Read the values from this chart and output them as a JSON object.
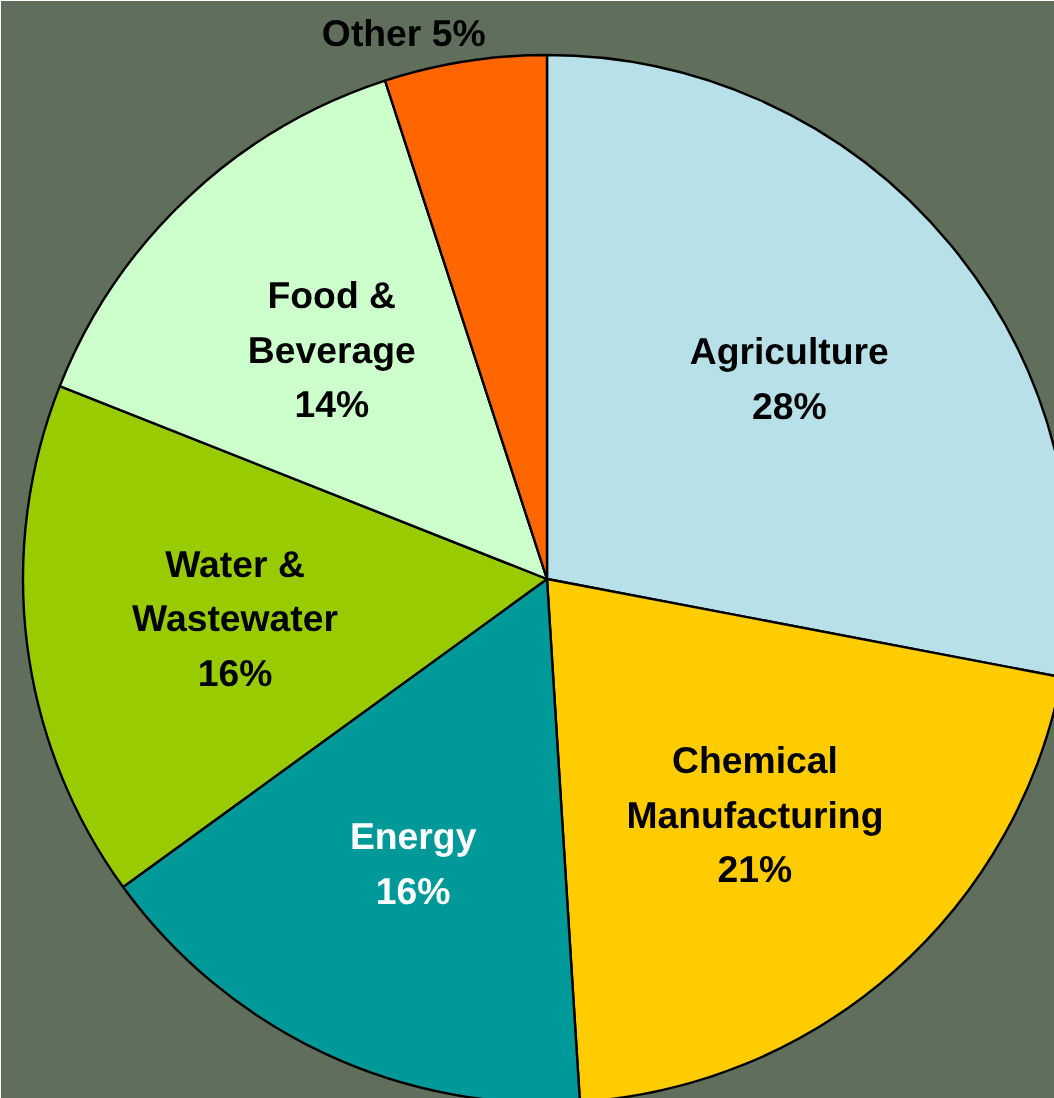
{
  "chart_data": {
    "type": "pie",
    "categories": [
      "Agriculture",
      "Chemical\nManufacturing",
      "Energy",
      "Water &\nWastewater",
      "Food &\nBeverage",
      "Other"
    ],
    "values": [
      28,
      21,
      16,
      16,
      14,
      5
    ],
    "value_labels": [
      "28%",
      "21%",
      "16%",
      "16%",
      "14%",
      "5%"
    ],
    "colors": [
      "#b8e0e8",
      "#ffcc00",
      "#009999",
      "#99cc00",
      "#ccffcc",
      "#ff6600"
    ]
  }
}
